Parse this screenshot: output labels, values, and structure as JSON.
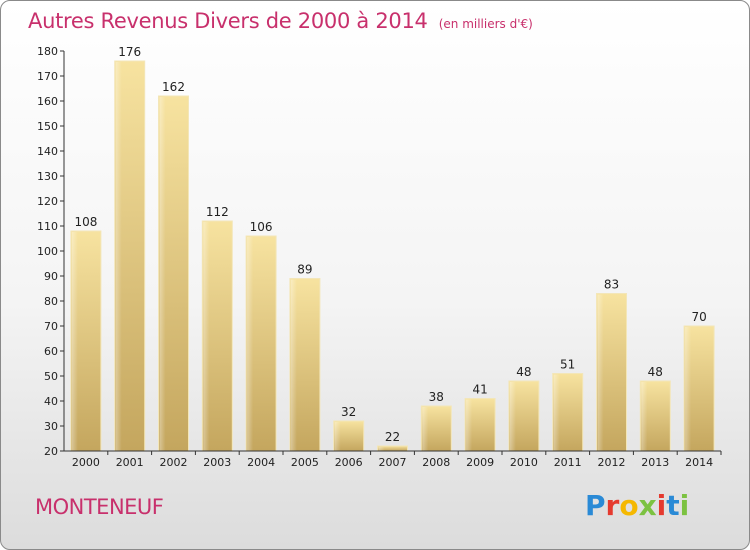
{
  "title": "Autres Revenus Divers de 2000 à 2014",
  "unit": "(en milliers d'€)",
  "commune": "MONTENEUF",
  "logo": {
    "text": "Proxiti",
    "colors": [
      "#2a8ad6",
      "#e53a2f",
      "#f5b800",
      "#7cc241",
      "#e53a2f",
      "#2a8ad6",
      "#7cc241"
    ]
  },
  "chart_data": {
    "type": "bar",
    "title": "Autres Revenus Divers de 2000 à 2014",
    "ylabel": "en milliers d'€",
    "categories": [
      "2000",
      "2001",
      "2002",
      "2003",
      "2004",
      "2005",
      "2006",
      "2007",
      "2008",
      "2009",
      "2010",
      "2011",
      "2012",
      "2013",
      "2014"
    ],
    "values": [
      108,
      176,
      162,
      112,
      106,
      89,
      32,
      22,
      38,
      41,
      48,
      51,
      83,
      48,
      70
    ],
    "ylim": [
      20,
      180
    ],
    "yticks": [
      20,
      30,
      40,
      50,
      60,
      70,
      80,
      90,
      100,
      110,
      120,
      130,
      140,
      150,
      160,
      170,
      180
    ],
    "grid": false,
    "bar_color": "#d9bd72"
  }
}
